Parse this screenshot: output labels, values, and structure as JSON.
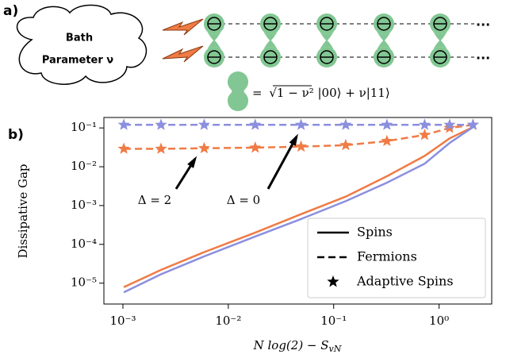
{
  "diagram": {
    "label": "a)",
    "cloud_lines": [
      "Bath",
      "Parameter ν"
    ],
    "ellipsis": "...",
    "equation": [
      "=",
      "√",
      "1 − ν²",
      "|00⟩ + ν|11⟩"
    ]
  },
  "chart_data": {
    "type": "line",
    "panel_label": "b)",
    "y_label": "Dissipative Gap",
    "x_label": [
      "N log(2) − S",
      "vN"
    ],
    "xscale": "log",
    "yscale": "log",
    "xlim": [
      0.00066,
      3.16
    ],
    "ylim": [
      2.9e-06,
      0.186
    ],
    "xticks": [
      {
        "value": 0.001,
        "label": "10⁻³"
      },
      {
        "value": 0.01,
        "label": "10⁻²"
      },
      {
        "value": 0.1,
        "label": "10⁻¹"
      },
      {
        "value": 1,
        "label": "10⁰"
      }
    ],
    "yticks": [
      {
        "value": 1e-05,
        "label": "10⁻⁵"
      },
      {
        "value": 0.0001,
        "label": "10⁻⁴"
      },
      {
        "value": 0.001,
        "label": "10⁻³"
      },
      {
        "value": 0.01,
        "label": "10⁻²"
      },
      {
        "value": 0.1,
        "label": "10⁻¹"
      }
    ],
    "x": [
      0.00102,
      0.0023,
      0.0059,
      0.018,
      0.049,
      0.13,
      0.32,
      0.73,
      1.26,
      2.1
    ],
    "series": [
      {
        "style": "solid",
        "color": "#ef7b45",
        "values": [
          7.9e-06,
          2.2e-05,
          6.3e-05,
          0.0002,
          0.0006,
          0.0017,
          0.0057,
          0.019,
          0.054,
          0.105
        ]
      },
      {
        "style": "solid",
        "color": "#8b8fde",
        "values": [
          5.8e-06,
          1.7e-05,
          4.9e-05,
          0.00016,
          0.00045,
          0.0013,
          0.0039,
          0.012,
          0.041,
          0.105
        ]
      },
      {
        "style": "dashed",
        "color": "#ef7b45",
        "values": [
          0.029,
          0.029,
          0.03,
          0.031,
          0.033,
          0.036,
          0.046,
          0.066,
          0.1,
          0.12
        ]
      },
      {
        "style": "dashed",
        "color": "#8b8fde",
        "values": [
          0.12,
          0.12,
          0.12,
          0.12,
          0.12,
          0.12,
          0.12,
          0.12,
          0.12,
          0.12
        ]
      },
      {
        "style": "star",
        "color": "#ef7b45",
        "values": [
          0.029,
          0.029,
          0.03,
          0.031,
          0.033,
          0.036,
          0.046,
          0.066,
          0.1,
          0.12
        ]
      },
      {
        "style": "star",
        "color": "#8b8fde",
        "values": [
          0.12,
          0.12,
          0.12,
          0.12,
          0.12,
          0.12,
          0.12,
          0.12,
          0.12,
          0.12
        ]
      }
    ],
    "annotations": [
      "Δ = 2",
      "Δ = 0"
    ],
    "legend": {
      "loc": "lower right",
      "entries": [
        {
          "label": "Spins",
          "style": "solid"
        },
        {
          "label": "Fermions",
          "style": "dashed"
        },
        {
          "label": "Adaptive Spins",
          "style": "star"
        }
      ]
    }
  }
}
